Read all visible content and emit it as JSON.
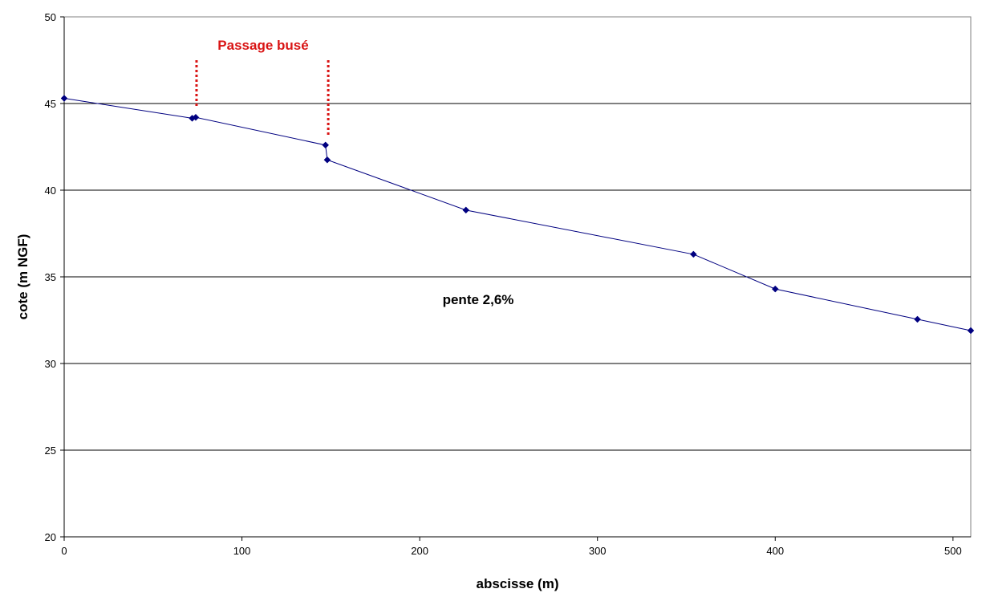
{
  "chart_data": {
    "type": "line",
    "title": "",
    "xlabel": "abscisse (m)",
    "ylabel": "cote (m NGF)",
    "xlim": [
      0,
      510
    ],
    "ylim": [
      20,
      50
    ],
    "x_ticks": [
      0,
      100,
      200,
      300,
      400,
      500
    ],
    "y_ticks": [
      20,
      25,
      30,
      35,
      40,
      45,
      50
    ],
    "grid": "horizontal major",
    "legend": "none",
    "series": [
      {
        "color": "#000080",
        "marker": "diamond",
        "x": [
          0,
          72,
          74,
          147,
          148,
          226,
          354,
          400,
          480,
          510
        ],
        "y": [
          45.3,
          44.15,
          44.2,
          42.6,
          41.75,
          38.85,
          36.3,
          34.3,
          32.55,
          31.9
        ]
      }
    ],
    "annotations": [
      {
        "text": "Passage busé",
        "color": "#d91414",
        "x_start": 74,
        "x_end": 149
      },
      {
        "text": "pente 2,6%",
        "color": "#000000"
      }
    ]
  }
}
